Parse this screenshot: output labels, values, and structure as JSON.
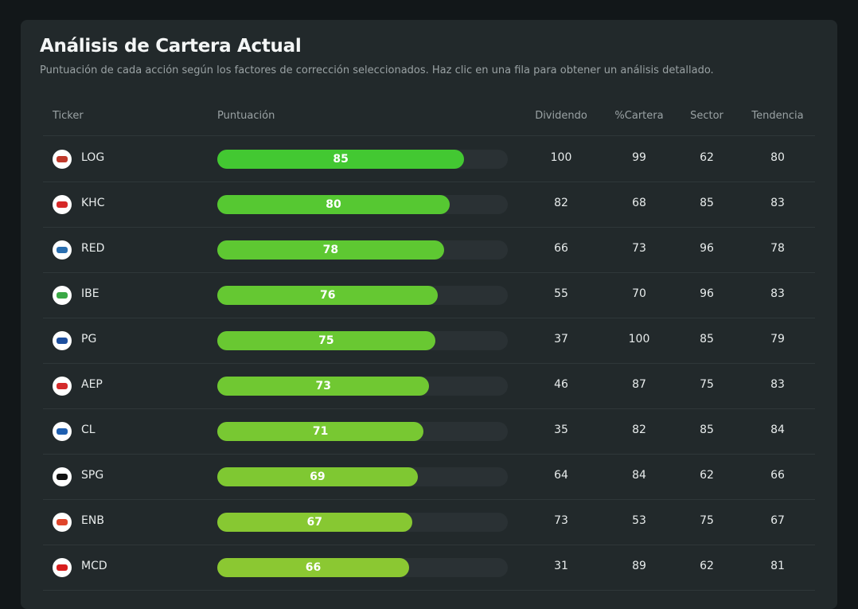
{
  "header": {
    "title": "Análisis de Cartera Actual",
    "subtitle": "Puntuación de cada acción según los factores de corrección seleccionados. Haz clic en una fila para obtener un análisis detallado."
  },
  "table": {
    "columns": [
      "Ticker",
      "Puntuación",
      "Dividendo",
      "%Cartera",
      "Sector",
      "Tendencia"
    ],
    "rows": [
      [
        "LOG",
        85,
        100,
        99,
        62,
        80
      ],
      [
        "KHC",
        80,
        82,
        68,
        85,
        83
      ],
      [
        "RED",
        78,
        66,
        73,
        96,
        78
      ],
      [
        "IBE",
        76,
        55,
        70,
        96,
        83
      ],
      [
        "PG",
        75,
        37,
        100,
        85,
        79
      ],
      [
        "AEP",
        73,
        46,
        87,
        75,
        83
      ],
      [
        "CL",
        71,
        35,
        82,
        85,
        84
      ],
      [
        "SPG",
        69,
        64,
        84,
        62,
        66
      ],
      [
        "ENB",
        67,
        73,
        53,
        75,
        67
      ],
      [
        "MCD",
        66,
        31,
        89,
        62,
        81
      ]
    ]
  }
}
